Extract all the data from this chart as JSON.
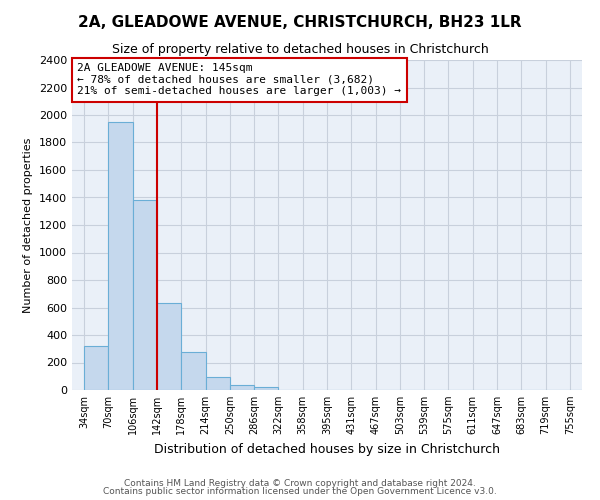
{
  "title": "2A, GLEADOWE AVENUE, CHRISTCHURCH, BH23 1LR",
  "subtitle": "Size of property relative to detached houses in Christchurch",
  "xlabel": "Distribution of detached houses by size in Christchurch",
  "ylabel": "Number of detached properties",
  "footer_line1": "Contains HM Land Registry data © Crown copyright and database right 2024.",
  "footer_line2": "Contains public sector information licensed under the Open Government Licence v3.0.",
  "bin_labels": [
    "34sqm",
    "70sqm",
    "106sqm",
    "142sqm",
    "178sqm",
    "214sqm",
    "250sqm",
    "286sqm",
    "322sqm",
    "358sqm",
    "395sqm",
    "431sqm",
    "467sqm",
    "503sqm",
    "539sqm",
    "575sqm",
    "611sqm",
    "647sqm",
    "683sqm",
    "719sqm",
    "755sqm"
  ],
  "bar_values": [
    320,
    1950,
    1380,
    630,
    275,
    95,
    40,
    20,
    0,
    0,
    0,
    0,
    0,
    0,
    0,
    0,
    0,
    0,
    0,
    0,
    0
  ],
  "bar_color": "#c5d8ed",
  "bar_edge_color": "#6aaed6",
  "property_line_x": 3.0,
  "annotation_text_line1": "2A GLEADOWE AVENUE: 145sqm",
  "annotation_text_line2": "← 78% of detached houses are smaller (3,682)",
  "annotation_text_line3": "21% of semi-detached houses are larger (1,003) →",
  "vline_color": "#cc0000",
  "annotation_box_edge_color": "#cc0000",
  "ylim": [
    0,
    2400
  ],
  "yticks": [
    0,
    200,
    400,
    600,
    800,
    1000,
    1200,
    1400,
    1600,
    1800,
    2000,
    2200,
    2400
  ],
  "axes_bg_color": "#eaf0f8",
  "background_color": "#ffffff",
  "grid_color": "#c8d0dc",
  "title_fontsize": 11,
  "subtitle_fontsize": 9,
  "xlabel_fontsize": 9,
  "ylabel_fontsize": 8,
  "tick_fontsize": 8,
  "xtick_fontsize": 7,
  "annotation_fontsize": 8,
  "footer_fontsize": 6.5
}
